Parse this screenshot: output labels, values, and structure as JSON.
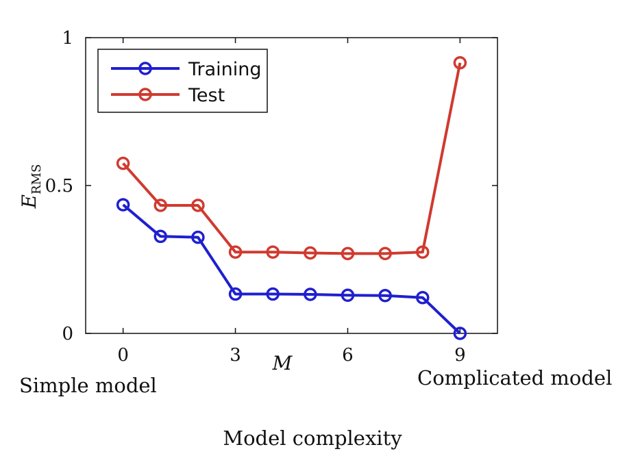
{
  "chart_data": {
    "type": "line",
    "x": [
      0,
      1,
      2,
      3,
      4,
      5,
      6,
      7,
      8,
      9
    ],
    "xticks": [
      "0",
      "3",
      "6",
      "9"
    ],
    "yticks": [
      "0",
      "0.5",
      "1"
    ],
    "xlabel": "M",
    "ylabel_main": "E",
    "ylabel_sub": "RMS",
    "xlim": [
      -1,
      10
    ],
    "ylim": [
      0,
      1
    ],
    "grid": false,
    "legend_position": "top-left",
    "series": [
      {
        "name": "Training",
        "color": "#1f1fd0",
        "values": [
          0.435,
          0.328,
          0.325,
          0.133,
          0.133,
          0.132,
          0.129,
          0.128,
          0.121,
          0.0
        ]
      },
      {
        "name": "Test",
        "color": "#d03a2f",
        "values": [
          0.575,
          0.433,
          0.433,
          0.275,
          0.275,
          0.272,
          0.27,
          0.27,
          0.275,
          0.915
        ]
      }
    ],
    "annotations": {
      "left": "Simple model",
      "right": "Complicated model",
      "bottom": "Model complexity"
    }
  }
}
